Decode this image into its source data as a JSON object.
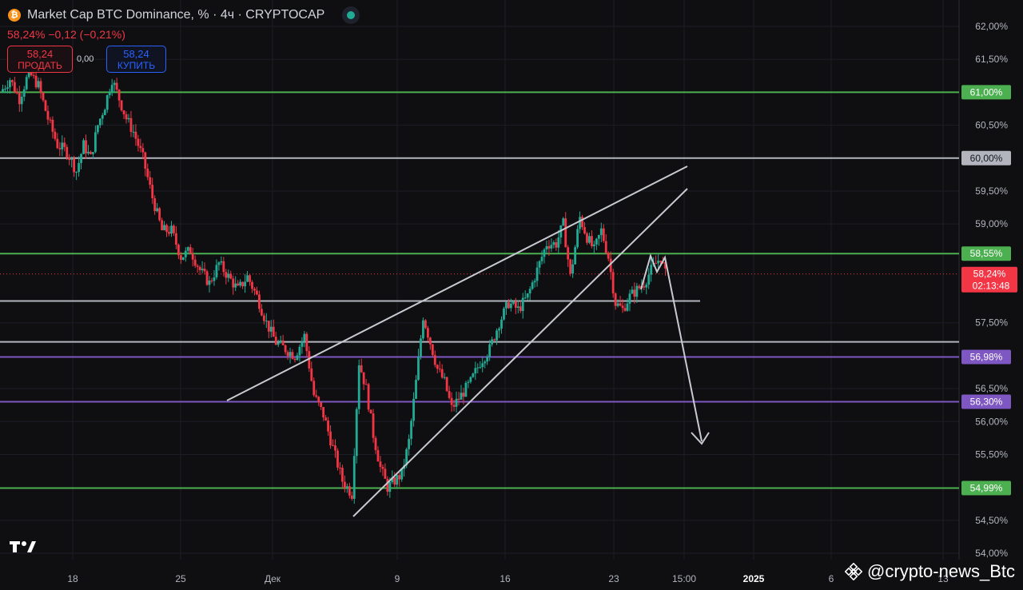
{
  "header": {
    "title": "Market Cap BTC Dominance, % · 4ч · CRYPTOCAP",
    "coin_icon": "bitcoin-icon",
    "change": "58,24%  −0,12 (−0,21%)",
    "sell_price": "58,24",
    "sell_label": "ПРОДАТЬ",
    "spread": "0,00",
    "buy_price": "58,24",
    "buy_label": "КУПИТЬ"
  },
  "watermark": "@crypto-news_Btc",
  "chart_data": {
    "type": "candlestick",
    "title": "Market Cap BTC Dominance, % · 4ч · CRYPTOCAP",
    "ylim": [
      54.0,
      62.2
    ],
    "y_ticks": [
      {
        "v": 62.0,
        "label": "62,00%"
      },
      {
        "v": 61.5,
        "label": "61,50%"
      },
      {
        "v": 60.5,
        "label": "60,50%"
      },
      {
        "v": 59.5,
        "label": "59,50%"
      },
      {
        "v": 59.0,
        "label": "59,00%"
      },
      {
        "v": 57.5,
        "label": "57,50%"
      },
      {
        "v": 56.5,
        "label": "56,50%"
      },
      {
        "v": 56.0,
        "label": "56,00%"
      },
      {
        "v": 55.5,
        "label": "55,50%"
      },
      {
        "v": 54.5,
        "label": "54,50%"
      },
      {
        "v": 54.0,
        "label": "54,00%"
      }
    ],
    "x_ticks": [
      "18",
      "25",
      "Дек",
      "9",
      "16",
      "23",
      "15:00",
      "2025",
      "6",
      "13"
    ],
    "price_path": [
      [
        0,
        61.0
      ],
      [
        4,
        61.2
      ],
      [
        8,
        60.9
      ],
      [
        12,
        61.3
      ],
      [
        16,
        61.1
      ],
      [
        20,
        60.6
      ],
      [
        24,
        60.2
      ],
      [
        28,
        60.1
      ],
      [
        32,
        59.8
      ],
      [
        35,
        60.2
      ],
      [
        38,
        60.0
      ],
      [
        41,
        60.5
      ],
      [
        44,
        60.8
      ],
      [
        47,
        61.2
      ],
      [
        50,
        60.9
      ],
      [
        53,
        60.6
      ],
      [
        56,
        60.4
      ],
      [
        60,
        60.0
      ],
      [
        64,
        59.4
      ],
      [
        68,
        58.9
      ],
      [
        72,
        58.9
      ],
      [
        76,
        58.5
      ],
      [
        80,
        58.6
      ],
      [
        84,
        58.3
      ],
      [
        88,
        58.1
      ],
      [
        92,
        58.4
      ],
      [
        96,
        58.2
      ],
      [
        100,
        58.0
      ],
      [
        104,
        58.2
      ],
      [
        108,
        57.9
      ],
      [
        112,
        57.5
      ],
      [
        116,
        57.2
      ],
      [
        120,
        57.1
      ],
      [
        124,
        57.0
      ],
      [
        128,
        57.3
      ],
      [
        132,
        56.4
      ],
      [
        136,
        56.1
      ],
      [
        140,
        55.6
      ],
      [
        144,
        55.1
      ],
      [
        148,
        54.9
      ],
      [
        151,
        56.9
      ],
      [
        154,
        56.5
      ],
      [
        157,
        55.8
      ],
      [
        160,
        55.3
      ],
      [
        163,
        55.0
      ],
      [
        166,
        55.1
      ],
      [
        169,
        55.2
      ],
      [
        172,
        55.7
      ],
      [
        175,
        56.6
      ],
      [
        178,
        57.6
      ],
      [
        181,
        57.2
      ],
      [
        184,
        56.8
      ],
      [
        187,
        56.6
      ],
      [
        190,
        56.2
      ],
      [
        194,
        56.4
      ],
      [
        198,
        56.6
      ],
      [
        202,
        56.9
      ],
      [
        206,
        57.1
      ],
      [
        210,
        57.5
      ],
      [
        214,
        57.8
      ],
      [
        218,
        57.7
      ],
      [
        222,
        57.9
      ],
      [
        226,
        58.3
      ],
      [
        230,
        58.7
      ],
      [
        234,
        58.7
      ],
      [
        237,
        59.0
      ],
      [
        240,
        58.2
      ],
      [
        244,
        59.1
      ],
      [
        247,
        58.8
      ],
      [
        250,
        58.6
      ],
      [
        253,
        58.9
      ],
      [
        256,
        58.5
      ],
      [
        259,
        57.8
      ],
      [
        262,
        57.7
      ],
      [
        265,
        57.9
      ],
      [
        268,
        58.0
      ],
      [
        271,
        58.1
      ],
      [
        274,
        58.3
      ],
      [
        278,
        58.5
      ],
      [
        280,
        58.24
      ]
    ],
    "horizontal_lines": [
      {
        "value": 61.0,
        "label": "61,00%",
        "color": "#4caf50"
      },
      {
        "value": 60.0,
        "label": "60,00%",
        "color": "#b2b5be"
      },
      {
        "value": 58.55,
        "label": "58,55%",
        "color": "#4caf50"
      },
      {
        "value": 57.83,
        "label": "",
        "color": "#b2b5be"
      },
      {
        "value": 57.21,
        "label": "",
        "color": "#b2b5be"
      },
      {
        "value": 56.98,
        "label": "56,98%",
        "color": "#7e57c2"
      },
      {
        "value": 56.3,
        "label": "56,30%",
        "color": "#7e57c2"
      },
      {
        "value": 54.99,
        "label": "54,99%",
        "color": "#4caf50"
      }
    ],
    "last_price": {
      "value": 58.24,
      "label": "58,24%",
      "countdown": "02:13:48",
      "color": "#f23645"
    },
    "trend_lines": [
      {
        "x1": "Дек-2",
        "y1": 56.35,
        "x2": "23+",
        "y2": 59.93
      },
      {
        "x1": "6",
        "y1": 54.55,
        "x2": "23+",
        "y2": 59.55
      }
    ],
    "forecast": {
      "from": 58.5,
      "to": 55.7,
      "direction": "down"
    }
  }
}
